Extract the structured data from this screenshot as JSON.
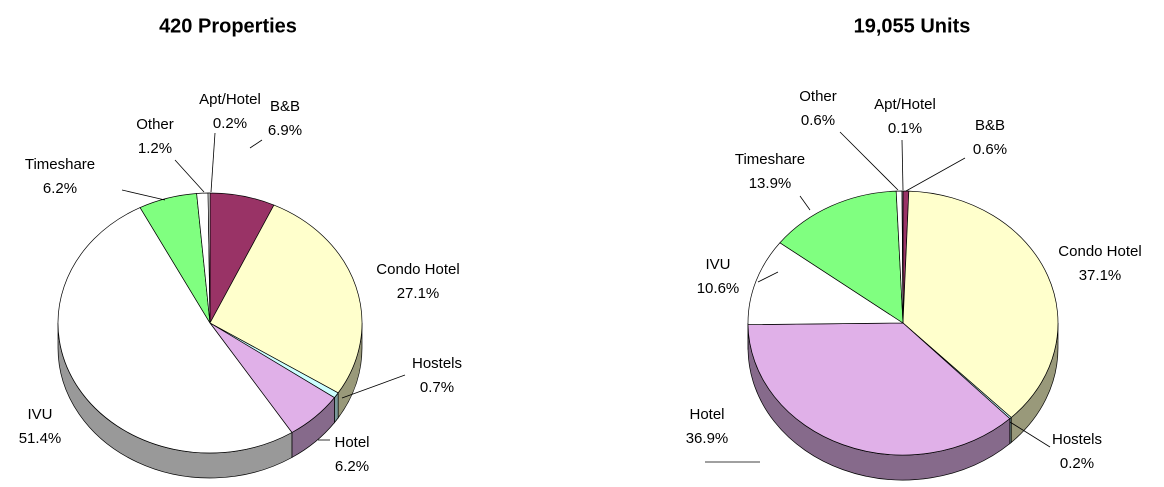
{
  "chart_data": [
    {
      "type": "pie",
      "title": "420 Properties",
      "categories": [
        "B&B",
        "Condo Hotel",
        "Hostels",
        "Hotel",
        "IVU",
        "Timeshare",
        "Other",
        "Apt/Hotel"
      ],
      "values": [
        6.9,
        27.1,
        0.7,
        6.2,
        51.4,
        6.2,
        1.2,
        0.2
      ],
      "value_labels": [
        "6.9%",
        "27.1%",
        "0.7%",
        "6.2%",
        "51.4%",
        "6.2%",
        "1.2%",
        "0.2%"
      ],
      "colors": [
        "#993366",
        "#ffffcc",
        "#ccffff",
        "#e0b0e8",
        "#ffffff",
        "#80ff80",
        "#ffffff",
        "#ffffff"
      ]
    },
    {
      "type": "pie",
      "title": "19,055 Units",
      "categories": [
        "B&B",
        "Condo Hotel",
        "Hostels",
        "Hotel",
        "IVU",
        "Timeshare",
        "Other",
        "Apt/Hotel"
      ],
      "values": [
        0.6,
        37.1,
        0.2,
        36.9,
        10.6,
        13.9,
        0.6,
        0.1
      ],
      "value_labels": [
        "0.6%",
        "37.1%",
        "0.2%",
        "36.9%",
        "10.6%",
        "13.9%",
        "0.6%",
        "0.1%"
      ],
      "colors": [
        "#993366",
        "#ffffcc",
        "#ccffff",
        "#e0b0e8",
        "#ffffff",
        "#80ff80",
        "#ffffff",
        "#ffffff"
      ]
    }
  ]
}
